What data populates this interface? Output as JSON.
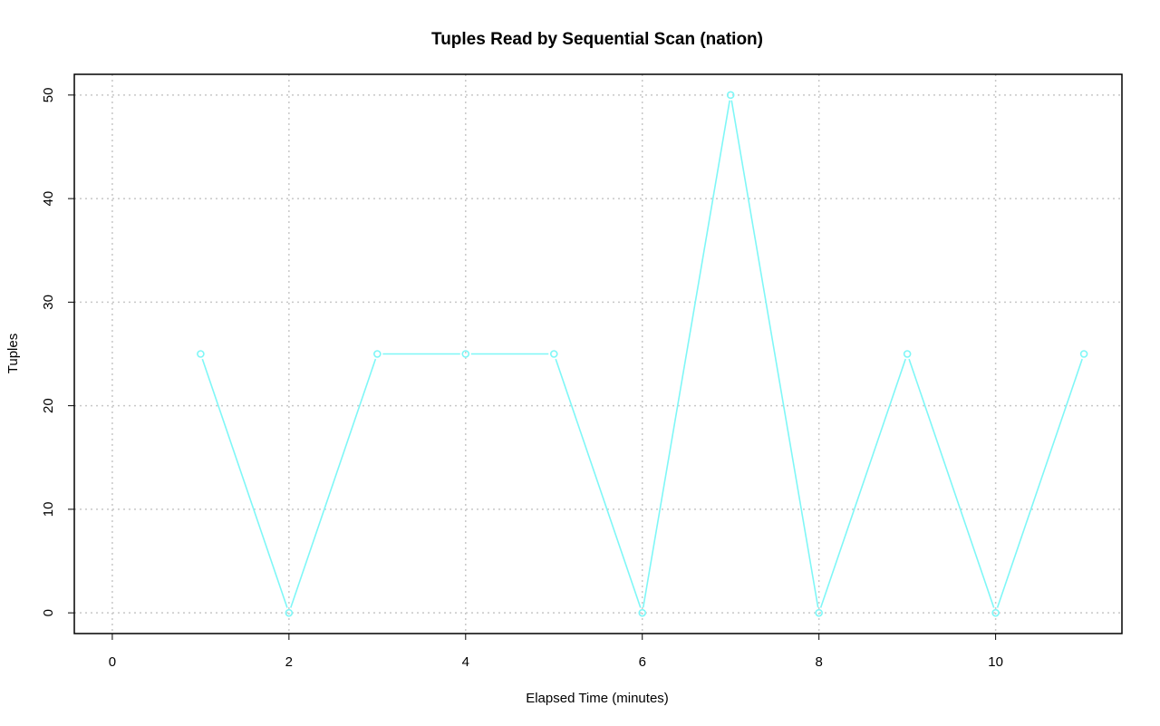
{
  "chart_data": {
    "type": "line",
    "title": "Tuples Read by Sequential Scan (nation)",
    "xlabel": "Elapsed Time (minutes)",
    "ylabel": "Tuples",
    "xlim": [
      -0.43,
      11.43
    ],
    "ylim": [
      -2,
      52
    ],
    "x_ticks": [
      0,
      2,
      4,
      6,
      8,
      10
    ],
    "y_ticks": [
      0,
      10,
      20,
      30,
      40,
      50
    ],
    "x_tick_labels": [
      "0",
      "2",
      "4",
      "6",
      "8",
      "10"
    ],
    "y_tick_labels": [
      "0",
      "10",
      "20",
      "30",
      "40",
      "50"
    ],
    "grid": true,
    "series": [
      {
        "color": "#7ff7f7",
        "marker": "circle",
        "x": [
          1,
          2,
          3,
          4,
          5,
          6,
          7,
          8,
          9,
          10,
          11
        ],
        "y": [
          25,
          0,
          25,
          25,
          25,
          0,
          50,
          0,
          25,
          0,
          25
        ]
      }
    ]
  }
}
